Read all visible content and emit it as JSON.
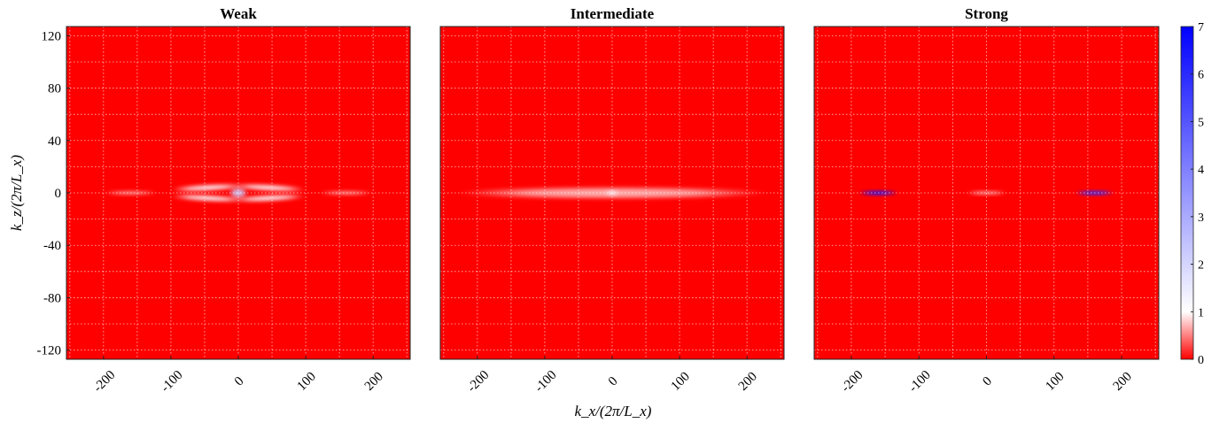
{
  "chart_data": [
    {
      "type": "heatmap",
      "title": "Weak",
      "xlabel": "",
      "ylabel": "k_z/(2π/L_x)",
      "xlim": [
        -255,
        255
      ],
      "ylim": [
        -127,
        127
      ],
      "xticks": [
        -200,
        -100,
        0,
        100,
        200
      ],
      "yticks": [
        120,
        80,
        40,
        0,
        -40,
        -80,
        -120
      ],
      "features": [
        {
          "kind": "lobe",
          "x": -45,
          "y": 4,
          "rx": 55,
          "ry": 2.5,
          "value": 1.1,
          "angle": -3
        },
        {
          "kind": "lobe",
          "x": 45,
          "y": 4,
          "rx": 55,
          "ry": 2.5,
          "value": 1.1,
          "angle": 3
        },
        {
          "kind": "lobe",
          "x": -45,
          "y": -4,
          "rx": 55,
          "ry": 2.5,
          "value": 1.1,
          "angle": 3
        },
        {
          "kind": "lobe",
          "x": 45,
          "y": -4,
          "rx": 55,
          "ry": 2.5,
          "value": 1.1,
          "angle": -3
        },
        {
          "kind": "core",
          "x": 0,
          "y": 0,
          "rx": 14,
          "ry": 4,
          "value": 2.2
        },
        {
          "kind": "streak",
          "x": -160,
          "y": 0,
          "rx": 40,
          "ry": 1,
          "value": 1.0
        },
        {
          "kind": "streak",
          "x": 160,
          "y": 0,
          "rx": 40,
          "ry": 1,
          "value": 1.0
        }
      ]
    },
    {
      "type": "heatmap",
      "title": "Intermediate",
      "xlabel": "k_x/(2π/L_x)",
      "ylabel": "",
      "xlim": [
        -255,
        255
      ],
      "ylim": [
        -127,
        127
      ],
      "xticks": [
        -200,
        -100,
        0,
        100,
        200
      ],
      "features": [
        {
          "kind": "band",
          "x": 0,
          "y": 0,
          "rx": 230,
          "ry": 5,
          "value": 0.7
        },
        {
          "kind": "core",
          "x": 0,
          "y": 0,
          "rx": 10,
          "ry": 2,
          "value": 1.2
        }
      ]
    },
    {
      "type": "heatmap",
      "title": "Strong",
      "xlabel": "",
      "ylabel": "",
      "xlim": [
        -255,
        255
      ],
      "ylim": [
        -127,
        127
      ],
      "xticks": [
        -200,
        -100,
        0,
        100,
        200
      ],
      "features": [
        {
          "kind": "streak",
          "x": -160,
          "y": 0,
          "rx": 30,
          "ry": 2,
          "value": 6.5
        },
        {
          "kind": "streak",
          "x": 160,
          "y": 0,
          "rx": 30,
          "ry": 2,
          "value": 6.0
        },
        {
          "kind": "core",
          "x": 0,
          "y": 0,
          "rx": 30,
          "ry": 1.2,
          "value": 0.9
        }
      ]
    }
  ],
  "colorbar": {
    "range": [
      0,
      7
    ],
    "ticks": [
      0,
      1,
      2,
      3,
      4,
      5,
      6,
      7
    ],
    "colors": {
      "low": "#ff0000",
      "mid": "#ffffff",
      "high": "#0000ff"
    },
    "mid_value": 1
  }
}
